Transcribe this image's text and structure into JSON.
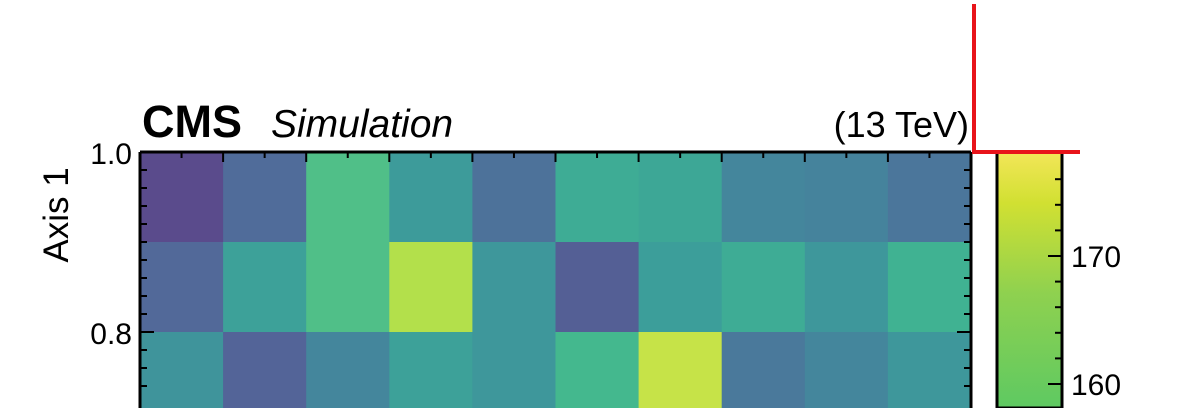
{
  "header": {
    "experiment": "CMS",
    "status": "Simulation",
    "energy": "(13 TeV)"
  },
  "chart_data": {
    "type": "heatmap",
    "ylabel": "Axis 1",
    "xlabel": "",
    "y_ticks": [
      "1.0",
      "0.8"
    ],
    "ylim_visible": [
      0.72,
      1.0
    ],
    "rows": [
      {
        "y": [
          0.9,
          1.0
        ],
        "values": [
          150.5,
          154.0,
          167.0,
          161.0,
          155.0,
          164.0,
          163.0,
          158.0,
          157.5,
          155.5
        ]
      },
      {
        "y": [
          0.8,
          0.9
        ],
        "values": [
          153.5,
          162.0,
          167.0,
          174.0,
          160.5,
          152.5,
          161.5,
          164.0,
          160.5,
          165.0
        ]
      },
      {
        "y": [
          0.7,
          0.8
        ],
        "values": [
          160.0,
          153.0,
          158.0,
          162.0,
          160.5,
          166.0,
          175.0,
          156.0,
          158.0,
          160.5
        ]
      }
    ],
    "colorbar": {
      "ticks": [
        "170",
        "160"
      ],
      "tick_values": [
        170,
        160
      ],
      "vmin": 145,
      "vmax": 178,
      "visible_range": [
        153,
        178
      ]
    },
    "colormap": "viridis"
  }
}
